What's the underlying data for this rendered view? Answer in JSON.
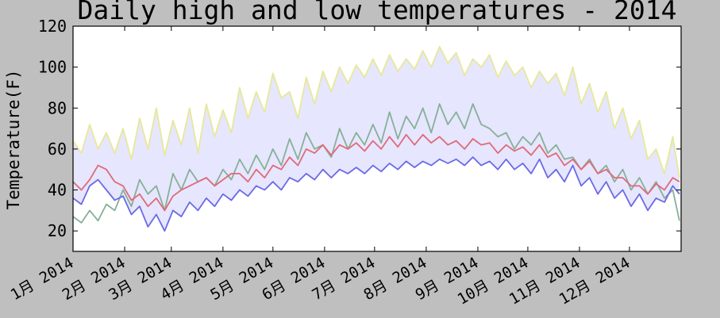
{
  "chart_data": {
    "type": "area",
    "title": "Daily high and low temperatures - 2014",
    "ylabel": "Temperature(F)",
    "xlabel": "",
    "ylim": [
      10,
      120
    ],
    "xlim": [
      0,
      365
    ],
    "yticks": [
      20,
      40,
      60,
      80,
      100,
      120
    ],
    "xtick_positions": [
      0,
      31,
      59,
      90,
      120,
      151,
      181,
      212,
      243,
      273,
      304,
      334
    ],
    "xtick_labels": [
      "1月 2014",
      "2月 2014",
      "3月 2014",
      "4月 2014",
      "5月 2014",
      "6月 2014",
      "7月 2014",
      "8月 2014",
      "9月 2014",
      "10月 2014",
      "11月 2014",
      "12月 2014"
    ],
    "grid": false,
    "fill_between": {
      "upper": "yellow-series",
      "lower": "blue-series",
      "color": "#e6e6ff"
    },
    "colors": {
      "yellow": "#e8e89a",
      "green": "#86b096",
      "red": "#e06a78",
      "blue": "#6a6ae8",
      "fill": "#e6e6ff"
    },
    "series": [
      {
        "key": "yellow-series",
        "color": "#e8e89a",
        "x": [
          0,
          5,
          10,
          15,
          20,
          25,
          30,
          35,
          40,
          45,
          50,
          55,
          60,
          65,
          70,
          75,
          80,
          85,
          90,
          95,
          100,
          105,
          110,
          115,
          120,
          125,
          130,
          135,
          140,
          145,
          150,
          155,
          160,
          165,
          170,
          175,
          180,
          185,
          190,
          195,
          200,
          205,
          210,
          215,
          220,
          225,
          230,
          235,
          240,
          245,
          250,
          255,
          260,
          265,
          270,
          275,
          280,
          285,
          290,
          295,
          300,
          305,
          310,
          315,
          320,
          325,
          330,
          335,
          340,
          345,
          350,
          355,
          360,
          364
        ],
        "values": [
          64,
          58,
          72,
          60,
          68,
          58,
          70,
          55,
          75,
          60,
          80,
          57,
          74,
          62,
          80,
          58,
          82,
          66,
          79,
          68,
          90,
          75,
          88,
          78,
          97,
          85,
          88,
          75,
          95,
          82,
          98,
          88,
          100,
          92,
          101,
          95,
          104,
          96,
          106,
          98,
          104,
          99,
          108,
          100,
          110,
          102,
          107,
          96,
          104,
          100,
          106,
          95,
          103,
          96,
          100,
          90,
          98,
          92,
          97,
          86,
          100,
          82,
          92,
          78,
          88,
          70,
          80,
          65,
          74,
          55,
          60,
          48,
          66,
          46
        ]
      },
      {
        "key": "green-series",
        "color": "#86b096",
        "x": [
          0,
          5,
          10,
          15,
          20,
          25,
          30,
          35,
          40,
          45,
          50,
          55,
          60,
          65,
          70,
          75,
          80,
          85,
          90,
          95,
          100,
          105,
          110,
          115,
          120,
          125,
          130,
          135,
          140,
          145,
          150,
          155,
          160,
          165,
          170,
          175,
          180,
          185,
          190,
          195,
          200,
          205,
          210,
          215,
          220,
          225,
          230,
          235,
          240,
          245,
          250,
          255,
          260,
          265,
          270,
          275,
          280,
          285,
          290,
          295,
          300,
          305,
          310,
          315,
          320,
          325,
          330,
          335,
          340,
          345,
          350,
          355,
          360,
          364
        ],
        "values": [
          27,
          24,
          30,
          25,
          33,
          30,
          40,
          32,
          45,
          38,
          42,
          30,
          48,
          40,
          50,
          44,
          46,
          42,
          50,
          45,
          55,
          48,
          57,
          50,
          60,
          52,
          65,
          55,
          68,
          60,
          62,
          56,
          70,
          60,
          68,
          62,
          72,
          63,
          78,
          65,
          76,
          70,
          80,
          68,
          82,
          72,
          78,
          70,
          82,
          72,
          70,
          66,
          68,
          60,
          66,
          62,
          68,
          58,
          62,
          55,
          56,
          50,
          55,
          48,
          52,
          44,
          50,
          40,
          46,
          38,
          44,
          36,
          40,
          25
        ]
      },
      {
        "key": "red-series",
        "color": "#e06a78",
        "x": [
          0,
          5,
          10,
          15,
          20,
          25,
          30,
          35,
          40,
          45,
          50,
          55,
          60,
          65,
          70,
          75,
          80,
          85,
          90,
          95,
          100,
          105,
          110,
          115,
          120,
          125,
          130,
          135,
          140,
          145,
          150,
          155,
          160,
          165,
          170,
          175,
          180,
          185,
          190,
          195,
          200,
          205,
          210,
          215,
          220,
          225,
          230,
          235,
          240,
          245,
          250,
          255,
          260,
          265,
          270,
          275,
          280,
          285,
          290,
          295,
          300,
          305,
          310,
          315,
          320,
          325,
          330,
          335,
          340,
          345,
          350,
          355,
          360,
          364
        ],
        "values": [
          44,
          40,
          45,
          52,
          50,
          44,
          42,
          35,
          38,
          32,
          36,
          30,
          37,
          40,
          42,
          44,
          46,
          42,
          45,
          48,
          48,
          44,
          50,
          46,
          52,
          50,
          56,
          52,
          60,
          58,
          62,
          57,
          62,
          60,
          63,
          59,
          64,
          60,
          66,
          61,
          67,
          62,
          67,
          63,
          66,
          62,
          64,
          60,
          65,
          62,
          63,
          58,
          62,
          59,
          61,
          57,
          62,
          56,
          58,
          52,
          55,
          50,
          54,
          48,
          50,
          46,
          46,
          42,
          42,
          38,
          43,
          40,
          46,
          44
        ]
      },
      {
        "key": "blue-series",
        "color": "#6a6ae8",
        "x": [
          0,
          5,
          10,
          15,
          20,
          25,
          30,
          35,
          40,
          45,
          50,
          55,
          60,
          65,
          70,
          75,
          80,
          85,
          90,
          95,
          100,
          105,
          110,
          115,
          120,
          125,
          130,
          135,
          140,
          145,
          150,
          155,
          160,
          165,
          170,
          175,
          180,
          185,
          190,
          195,
          200,
          205,
          210,
          215,
          220,
          225,
          230,
          235,
          240,
          245,
          250,
          255,
          260,
          265,
          270,
          275,
          280,
          285,
          290,
          295,
          300,
          305,
          310,
          315,
          320,
          325,
          330,
          335,
          340,
          345,
          350,
          355,
          360,
          364
        ],
        "values": [
          36,
          33,
          42,
          45,
          40,
          35,
          37,
          28,
          32,
          22,
          28,
          20,
          30,
          27,
          34,
          30,
          36,
          32,
          38,
          35,
          40,
          37,
          42,
          40,
          44,
          40,
          46,
          44,
          48,
          45,
          50,
          46,
          50,
          48,
          51,
          48,
          52,
          49,
          53,
          50,
          54,
          51,
          54,
          52,
          55,
          53,
          55,
          52,
          56,
          52,
          54,
          50,
          55,
          50,
          53,
          48,
          55,
          46,
          50,
          44,
          52,
          42,
          46,
          38,
          44,
          36,
          40,
          32,
          38,
          30,
          36,
          34,
          42,
          38
        ]
      }
    ]
  }
}
